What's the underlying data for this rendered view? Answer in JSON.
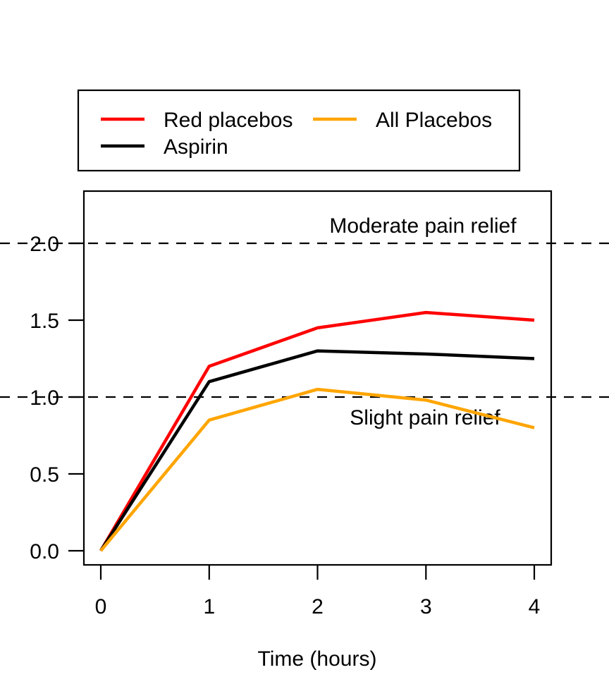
{
  "figure": {
    "background": "#ffffff"
  },
  "chart_data": {
    "type": "line",
    "title": "",
    "xlabel": "Time (hours)",
    "ylabel": "",
    "x": [
      0,
      1,
      2,
      3,
      4
    ],
    "x_tick_labels": [
      "0",
      "1",
      "2",
      "3",
      "4"
    ],
    "y_tick_labels": [
      "0.0",
      "0.5",
      "1.0",
      "1.5",
      "2.0"
    ],
    "xlim": [
      0,
      4
    ],
    "ylim": [
      0,
      2.2
    ],
    "grid": false,
    "legend_position": "top-left",
    "legend_columns": 2,
    "series": [
      {
        "name": "Red placebos",
        "color": "#ff0000",
        "values": [
          0,
          1.2,
          1.45,
          1.55,
          1.5
        ]
      },
      {
        "name": "Aspirin",
        "color": "#000000",
        "values": [
          0,
          1.1,
          1.3,
          1.28,
          1.25
        ]
      },
      {
        "name": "All Placebos",
        "color": "#ffa500",
        "values": [
          0,
          0.85,
          1.05,
          0.98,
          0.8
        ]
      }
    ],
    "reference_lines": [
      {
        "y": 2.0,
        "style": "dashed",
        "color": "#000000",
        "label": "Moderate pain relief"
      },
      {
        "y": 1.0,
        "style": "dashed",
        "color": "#000000",
        "label": "Slight pain relief"
      }
    ]
  }
}
